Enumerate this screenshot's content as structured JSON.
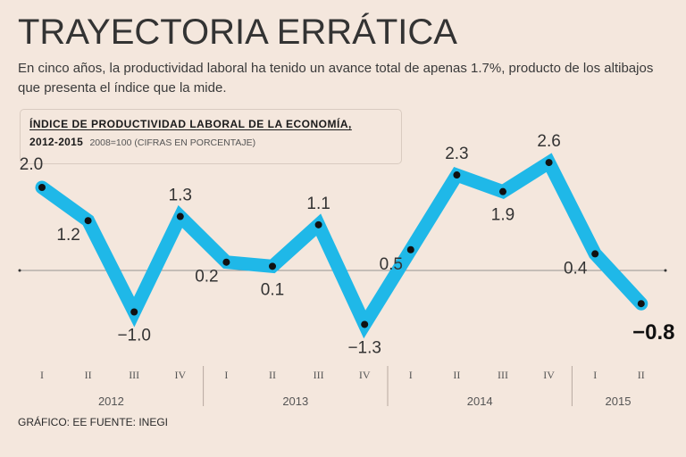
{
  "header": {
    "title": "TRAYECTORIA ERRÁTICA",
    "subtitle": "En cinco años, la productividad laboral ha tenido un avance total de apenas 1.7%, producto de los altibajos que presenta el índice que la mide."
  },
  "legend": {
    "title": "ÍNDICE DE PRODUCTIVIDAD LABORAL DE LA ECONOMÍA,",
    "years": "2012-2015",
    "note": "2008=100 (CIFRAS EN PORCENTAJE)"
  },
  "footer": {
    "credit": "GRÁFICO: EE  FUENTE: INEGI"
  },
  "colors": {
    "background": "#f4e7dd",
    "line": "#1fb8e8",
    "point": "#111111",
    "text": "#2a2a2a"
  },
  "chart_data": {
    "type": "line",
    "title": "ÍNDICE DE PRODUCTIVIDAD LABORAL DE LA ECONOMÍA, 2012-2015",
    "ylim": [
      -1.8,
      3.4
    ],
    "grid": false,
    "categories": [
      "I",
      "II",
      "III",
      "IV",
      "I",
      "II",
      "III",
      "IV",
      "I",
      "II",
      "III",
      "IV",
      "I",
      "II"
    ],
    "years": [
      {
        "label": "2012",
        "count": 4
      },
      {
        "label": "2013",
        "count": 4
      },
      {
        "label": "2014",
        "count": 4
      },
      {
        "label": "2015",
        "count": 2
      }
    ],
    "values": [
      2.0,
      1.2,
      -1.0,
      1.3,
      0.2,
      0.1,
      1.1,
      -1.3,
      0.5,
      2.3,
      1.9,
      2.6,
      0.4,
      -0.8
    ],
    "labels": [
      "2.0",
      "1.2",
      "-1.0",
      "1.3",
      "0.2",
      "0.1",
      "1.1",
      "-1.3",
      "0.5",
      "2.3",
      "1.9",
      "2.6",
      "0.4",
      "-0.8"
    ],
    "highlight_last": true
  }
}
